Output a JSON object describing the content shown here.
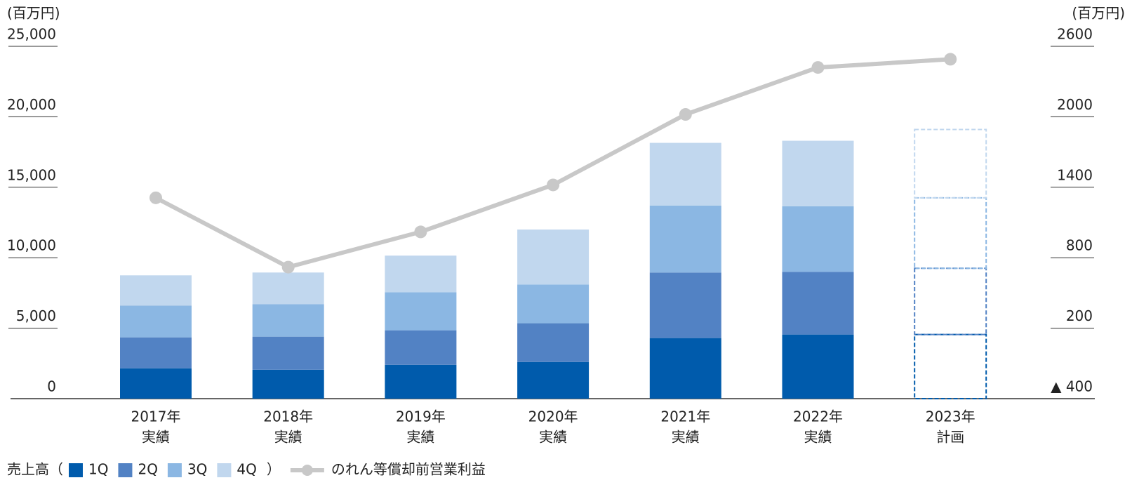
{
  "chart_data": {
    "type": "bar",
    "stacked": true,
    "y_unit_label": "(百万円)",
    "y2_unit_label": "(百万円)",
    "categories": [
      "2017年",
      "2018年",
      "2019年",
      "2020年",
      "2021年",
      "2022年",
      "2023年"
    ],
    "category_sublabels": [
      "実績",
      "実績",
      "実績",
      "実績",
      "実績",
      "実績",
      "計画"
    ],
    "dashed_last_category": true,
    "legend_prefix": "売上高（",
    "legend_suffix": "）",
    "series": [
      {
        "name": "1Q",
        "color": "#005bac",
        "values": [
          2150,
          2050,
          2400,
          2600,
          4300,
          4550,
          4550
        ]
      },
      {
        "name": "2Q",
        "color": "#5282c4",
        "values": [
          2200,
          2350,
          2450,
          2750,
          4650,
          4450,
          4700
        ]
      },
      {
        "name": "3Q",
        "color": "#8bb7e3",
        "values": [
          2250,
          2300,
          2700,
          2750,
          4750,
          4650,
          5000
        ]
      },
      {
        "name": "4Q",
        "color": "#c1d7ee",
        "values": [
          2150,
          2250,
          2600,
          3900,
          4450,
          4650,
          4850
        ]
      },
      {
        "name": "のれん等償却前営業利益",
        "color": "#c8c8c8",
        "type": "line",
        "axis": "y2",
        "values": [
          1310,
          720,
          1020,
          1420,
          2020,
          2420,
          2490
        ]
      }
    ],
    "ylim": [
      0,
      25000
    ],
    "yticks": [
      0,
      {
        "value": 5000,
        "label": "5,000"
      },
      {
        "value": 10000,
        "label": "10,000"
      },
      {
        "value": 15000,
        "label": "15,000"
      },
      {
        "value": 20000,
        "label": "20,000"
      },
      {
        "value": 25000,
        "label": "25,000"
      }
    ],
    "y2lim": [
      -400,
      2600
    ],
    "y2ticks": [
      {
        "value": -400,
        "label": "▲ 400"
      },
      200,
      800,
      1400,
      2000,
      2600
    ]
  }
}
